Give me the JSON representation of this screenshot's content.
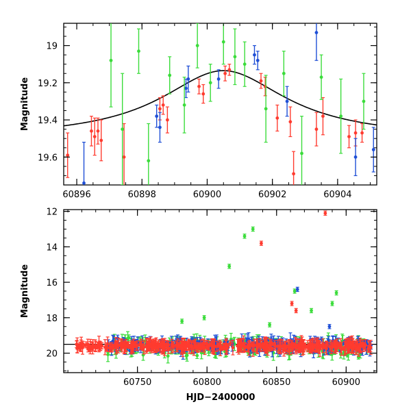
{
  "chart_data": [
    {
      "type": "scatter",
      "title": "",
      "xlabel": "",
      "ylabel": "Magnitude",
      "xlim": [
        60895.6,
        60905.2
      ],
      "ylim": [
        19.75,
        18.88
      ],
      "y_inverted": true,
      "xticks": [
        60896,
        60898,
        60900,
        60902,
        60904
      ],
      "yticks": [
        19,
        19.2,
        19.4,
        19.6
      ],
      "grid": false,
      "legend": "none",
      "model_curve": {
        "type": "microlensing",
        "peak_x": 60900.5,
        "peak_mag": 19.135,
        "tail_mag": 19.5,
        "amp": 0.365,
        "tE": 2.35,
        "color": "#000000"
      },
      "series": [
        {
          "color": "#ff3b2f",
          "points": [
            {
              "x": 60895.72,
              "y": 19.59,
              "err": 0.12
            },
            {
              "x": 60896.45,
              "y": 19.46,
              "err": 0.08
            },
            {
              "x": 60896.55,
              "y": 19.49,
              "err": 0.1
            },
            {
              "x": 60896.65,
              "y": 19.46,
              "err": 0.07
            },
            {
              "x": 60896.75,
              "y": 19.51,
              "err": 0.11
            },
            {
              "x": 60897.45,
              "y": 19.6,
              "err": 0.18
            },
            {
              "x": 60898.55,
              "y": 19.34,
              "err": 0.06
            },
            {
              "x": 60898.65,
              "y": 19.32,
              "err": 0.05
            },
            {
              "x": 60898.78,
              "y": 19.4,
              "err": 0.07
            },
            {
              "x": 60899.75,
              "y": 19.22,
              "err": 0.04
            },
            {
              "x": 60899.88,
              "y": 19.26,
              "err": 0.05
            },
            {
              "x": 60900.55,
              "y": 19.15,
              "err": 0.04
            },
            {
              "x": 60900.68,
              "y": 19.13,
              "err": 0.03
            },
            {
              "x": 60901.65,
              "y": 19.19,
              "err": 0.04
            },
            {
              "x": 60901.78,
              "y": 19.22,
              "err": 0.05
            },
            {
              "x": 60902.15,
              "y": 19.39,
              "err": 0.07
            },
            {
              "x": 60902.55,
              "y": 19.41,
              "err": 0.08
            },
            {
              "x": 60902.65,
              "y": 19.69,
              "err": 0.12
            },
            {
              "x": 60903.35,
              "y": 19.45,
              "err": 0.09
            },
            {
              "x": 60903.55,
              "y": 19.38,
              "err": 0.1
            },
            {
              "x": 60904.35,
              "y": 19.49,
              "err": 0.06
            },
            {
              "x": 60904.55,
              "y": 19.47,
              "err": 0.07
            },
            {
              "x": 60904.75,
              "y": 19.47,
              "err": 0.05
            }
          ]
        },
        {
          "color": "#1f4fd6",
          "points": [
            {
              "x": 60896.22,
              "y": 19.74,
              "err": 0.22
            },
            {
              "x": 60898.45,
              "y": 19.38,
              "err": 0.06
            },
            {
              "x": 60898.55,
              "y": 19.44,
              "err": 0.08
            },
            {
              "x": 60899.35,
              "y": 19.23,
              "err": 0.05
            },
            {
              "x": 60899.42,
              "y": 19.18,
              "err": 0.07
            },
            {
              "x": 60900.35,
              "y": 19.18,
              "err": 0.05
            },
            {
              "x": 60901.45,
              "y": 19.05,
              "err": 0.05
            },
            {
              "x": 60901.55,
              "y": 19.08,
              "err": 0.05
            },
            {
              "x": 60902.45,
              "y": 19.3,
              "err": 0.08
            },
            {
              "x": 60903.35,
              "y": 18.93,
              "err": 0.15
            },
            {
              "x": 60904.55,
              "y": 19.6,
              "err": 0.1
            },
            {
              "x": 60905.1,
              "y": 19.56,
              "err": 0.12
            }
          ]
        },
        {
          "color": "#3bdc3b",
          "points": [
            {
              "x": 60897.05,
              "y": 19.08,
              "err": 0.25
            },
            {
              "x": 60897.4,
              "y": 19.45,
              "err": 0.3
            },
            {
              "x": 60897.9,
              "y": 19.03,
              "err": 0.12
            },
            {
              "x": 60898.2,
              "y": 19.62,
              "err": 0.2
            },
            {
              "x": 60898.85,
              "y": 19.16,
              "err": 0.1
            },
            {
              "x": 60899.3,
              "y": 19.32,
              "err": 0.15
            },
            {
              "x": 60899.7,
              "y": 19.0,
              "err": 0.12
            },
            {
              "x": 60900.1,
              "y": 19.2,
              "err": 0.1
            },
            {
              "x": 60900.5,
              "y": 18.98,
              "err": 0.12
            },
            {
              "x": 60900.85,
              "y": 19.06,
              "err": 0.15
            },
            {
              "x": 60901.15,
              "y": 19.1,
              "err": 0.12
            },
            {
              "x": 60901.8,
              "y": 19.34,
              "err": 0.18
            },
            {
              "x": 60902.35,
              "y": 19.15,
              "err": 0.12
            },
            {
              "x": 60902.9,
              "y": 19.58,
              "err": 0.2
            },
            {
              "x": 60903.5,
              "y": 19.17,
              "err": 0.12
            },
            {
              "x": 60904.1,
              "y": 19.38,
              "err": 0.2
            },
            {
              "x": 60904.8,
              "y": 19.3,
              "err": 0.15
            }
          ]
        }
      ]
    },
    {
      "type": "scatter",
      "title": "",
      "xlabel": "HJD−2400000",
      "ylabel": "Magnitude",
      "xlim": [
        60697,
        60922
      ],
      "ylim": [
        21.1,
        11.9
      ],
      "y_inverted": true,
      "xticks": [
        60750,
        60800,
        60850,
        60900
      ],
      "yticks": [
        12,
        14,
        16,
        18,
        20
      ],
      "grid": false,
      "legend": "none",
      "baseline_mag": 19.5,
      "cloud_ranges": [
        {
          "color": "#3bdc3b",
          "x": [
            60728,
            60918
          ],
          "y_mean": 19.65,
          "y_spread": 0.9,
          "count": 260
        },
        {
          "color": "#1f4fd6",
          "x": [
            60728,
            60918
          ],
          "y_mean": 19.55,
          "y_spread": 0.6,
          "count": 260
        },
        {
          "color": "#ff3b2f",
          "x": [
            60705,
            60918
          ],
          "y_mean": 19.6,
          "y_spread": 0.35,
          "count": 420
        }
      ],
      "outliers": [
        {
          "color": "#3bdc3b",
          "x": 60816,
          "y": 15.1
        },
        {
          "color": "#3bdc3b",
          "x": 60827,
          "y": 13.4
        },
        {
          "color": "#3bdc3b",
          "x": 60833,
          "y": 13.0
        },
        {
          "color": "#3bdc3b",
          "x": 60863,
          "y": 16.5
        },
        {
          "color": "#3bdc3b",
          "x": 60875,
          "y": 17.6
        },
        {
          "color": "#3bdc3b",
          "x": 60890,
          "y": 17.2
        },
        {
          "color": "#3bdc3b",
          "x": 60893,
          "y": 16.6
        },
        {
          "color": "#3bdc3b",
          "x": 60782,
          "y": 18.2
        },
        {
          "color": "#3bdc3b",
          "x": 60798,
          "y": 18.0
        },
        {
          "color": "#3bdc3b",
          "x": 60845,
          "y": 18.4
        },
        {
          "color": "#ff3b2f",
          "x": 60839,
          "y": 13.8
        },
        {
          "color": "#ff3b2f",
          "x": 60885,
          "y": 12.1
        },
        {
          "color": "#ff3b2f",
          "x": 60861,
          "y": 17.2
        },
        {
          "color": "#ff3b2f",
          "x": 60864,
          "y": 17.6
        },
        {
          "color": "#1f4fd6",
          "x": 60865,
          "y": 16.4
        },
        {
          "color": "#1f4fd6",
          "x": 60888,
          "y": 18.5
        }
      ]
    }
  ]
}
